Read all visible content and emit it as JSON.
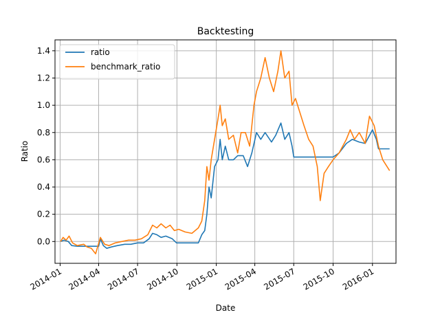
{
  "chart_data": {
    "type": "line",
    "title": "Backtesting",
    "xlabel": "Date",
    "ylabel": "Ratio",
    "x_ticks": [
      "2014-01",
      "2014-04",
      "2014-07",
      "2014-10",
      "2015-01",
      "2015-04",
      "2015-07",
      "2015-10",
      "2016-01"
    ],
    "y_ticks": [
      "0.0",
      "0.2",
      "0.4",
      "0.6",
      "0.8",
      "1.0",
      "1.2",
      "1.4"
    ],
    "xlim": [
      "2013-12-20",
      "2016-02-25"
    ],
    "ylim": [
      -0.16,
      1.48
    ],
    "grid": true,
    "legend_position": "top-left",
    "series": [
      {
        "name": "ratio",
        "color": "#1f77b4",
        "points": [
          [
            "2014-01-02",
            0.0
          ],
          [
            "2014-01-10",
            0.01
          ],
          [
            "2014-01-20",
            0.0
          ],
          [
            "2014-01-28",
            -0.03
          ],
          [
            "2014-02-10",
            -0.035
          ],
          [
            "2014-03-10",
            -0.035
          ],
          [
            "2014-04-01",
            -0.035
          ],
          [
            "2014-04-05",
            0.02
          ],
          [
            "2014-04-12",
            -0.03
          ],
          [
            "2014-04-20",
            -0.05
          ],
          [
            "2014-05-01",
            -0.04
          ],
          [
            "2014-05-15",
            -0.03
          ],
          [
            "2014-06-01",
            -0.02
          ],
          [
            "2014-06-15",
            -0.02
          ],
          [
            "2014-07-01",
            -0.01
          ],
          [
            "2014-07-15",
            -0.01
          ],
          [
            "2014-07-28",
            0.02
          ],
          [
            "2014-08-05",
            0.06
          ],
          [
            "2014-08-15",
            0.05
          ],
          [
            "2014-08-25",
            0.03
          ],
          [
            "2014-09-05",
            0.04
          ],
          [
            "2014-09-20",
            0.02
          ],
          [
            "2014-09-30",
            -0.01
          ],
          [
            "2014-10-20",
            -0.01
          ],
          [
            "2014-11-10",
            -0.01
          ],
          [
            "2014-11-20",
            -0.01
          ],
          [
            "2014-11-28",
            0.05
          ],
          [
            "2014-12-05",
            0.08
          ],
          [
            "2014-12-10",
            0.2
          ],
          [
            "2014-12-15",
            0.4
          ],
          [
            "2014-12-20",
            0.32
          ],
          [
            "2014-12-28",
            0.55
          ],
          [
            "2015-01-05",
            0.6
          ],
          [
            "2015-01-10",
            0.75
          ],
          [
            "2015-01-15",
            0.6
          ],
          [
            "2015-01-22",
            0.7
          ],
          [
            "2015-01-30",
            0.6
          ],
          [
            "2015-02-10",
            0.6
          ],
          [
            "2015-02-20",
            0.63
          ],
          [
            "2015-03-05",
            0.63
          ],
          [
            "2015-03-15",
            0.55
          ],
          [
            "2015-03-25",
            0.65
          ],
          [
            "2015-04-05",
            0.8
          ],
          [
            "2015-04-15",
            0.75
          ],
          [
            "2015-04-25",
            0.8
          ],
          [
            "2015-05-10",
            0.73
          ],
          [
            "2015-05-20",
            0.78
          ],
          [
            "2015-06-01",
            0.87
          ],
          [
            "2015-06-10",
            0.75
          ],
          [
            "2015-06-20",
            0.8
          ],
          [
            "2015-06-27",
            0.7
          ],
          [
            "2015-07-01",
            0.62
          ],
          [
            "2015-08-01",
            0.62
          ],
          [
            "2015-09-01",
            0.62
          ],
          [
            "2015-09-10",
            0.62
          ],
          [
            "2015-10-01",
            0.62
          ],
          [
            "2015-10-15",
            0.65
          ],
          [
            "2015-11-01",
            0.72
          ],
          [
            "2015-11-15",
            0.75
          ],
          [
            "2015-12-01",
            0.73
          ],
          [
            "2015-12-15",
            0.72
          ],
          [
            "2016-01-01",
            0.82
          ],
          [
            "2016-01-10",
            0.75
          ],
          [
            "2016-01-15",
            0.68
          ],
          [
            "2016-02-10",
            0.68
          ]
        ]
      },
      {
        "name": "benchmark_ratio",
        "color": "#ff7f0e",
        "points": [
          [
            "2014-01-02",
            0.0
          ],
          [
            "2014-01-08",
            0.03
          ],
          [
            "2014-01-15",
            0.01
          ],
          [
            "2014-01-22",
            0.04
          ],
          [
            "2014-01-30",
            -0.01
          ],
          [
            "2014-02-10",
            -0.03
          ],
          [
            "2014-02-25",
            -0.02
          ],
          [
            "2014-03-05",
            -0.04
          ],
          [
            "2014-03-15",
            -0.05
          ],
          [
            "2014-03-25",
            -0.09
          ],
          [
            "2014-04-05",
            0.03
          ],
          [
            "2014-04-15",
            -0.02
          ],
          [
            "2014-04-25",
            -0.03
          ],
          [
            "2014-05-10",
            -0.01
          ],
          [
            "2014-05-25",
            0.0
          ],
          [
            "2014-06-10",
            0.01
          ],
          [
            "2014-06-25",
            0.01
          ],
          [
            "2014-07-10",
            0.02
          ],
          [
            "2014-07-25",
            0.05
          ],
          [
            "2014-08-05",
            0.12
          ],
          [
            "2014-08-15",
            0.1
          ],
          [
            "2014-08-25",
            0.13
          ],
          [
            "2014-09-05",
            0.1
          ],
          [
            "2014-09-15",
            0.12
          ],
          [
            "2014-09-25",
            0.08
          ],
          [
            "2014-10-05",
            0.09
          ],
          [
            "2014-10-20",
            0.07
          ],
          [
            "2014-11-05",
            0.06
          ],
          [
            "2014-11-20",
            0.1
          ],
          [
            "2014-11-28",
            0.15
          ],
          [
            "2014-12-05",
            0.3
          ],
          [
            "2014-12-10",
            0.55
          ],
          [
            "2014-12-15",
            0.45
          ],
          [
            "2014-12-20",
            0.6
          ],
          [
            "2014-12-28",
            0.75
          ],
          [
            "2015-01-05",
            0.9
          ],
          [
            "2015-01-10",
            1.0
          ],
          [
            "2015-01-15",
            0.85
          ],
          [
            "2015-01-22",
            0.9
          ],
          [
            "2015-01-30",
            0.75
          ],
          [
            "2015-02-10",
            0.78
          ],
          [
            "2015-02-20",
            0.65
          ],
          [
            "2015-02-28",
            0.8
          ],
          [
            "2015-03-10",
            0.8
          ],
          [
            "2015-03-20",
            0.7
          ],
          [
            "2015-03-30",
            1.0
          ],
          [
            "2015-04-05",
            1.1
          ],
          [
            "2015-04-15",
            1.2
          ],
          [
            "2015-04-25",
            1.35
          ],
          [
            "2015-05-05",
            1.2
          ],
          [
            "2015-05-15",
            1.1
          ],
          [
            "2015-05-25",
            1.25
          ],
          [
            "2015-06-01",
            1.4
          ],
          [
            "2015-06-10",
            1.2
          ],
          [
            "2015-06-20",
            1.25
          ],
          [
            "2015-06-27",
            1.0
          ],
          [
            "2015-07-05",
            1.05
          ],
          [
            "2015-07-15",
            0.95
          ],
          [
            "2015-07-25",
            0.85
          ],
          [
            "2015-08-05",
            0.75
          ],
          [
            "2015-08-15",
            0.7
          ],
          [
            "2015-08-25",
            0.55
          ],
          [
            "2015-09-01",
            0.3
          ],
          [
            "2015-09-10",
            0.5
          ],
          [
            "2015-09-20",
            0.55
          ],
          [
            "2015-10-01",
            0.6
          ],
          [
            "2015-10-15",
            0.65
          ],
          [
            "2015-11-01",
            0.75
          ],
          [
            "2015-11-10",
            0.82
          ],
          [
            "2015-11-20",
            0.75
          ],
          [
            "2015-12-01",
            0.8
          ],
          [
            "2015-12-15",
            0.72
          ],
          [
            "2015-12-25",
            0.92
          ],
          [
            "2016-01-05",
            0.85
          ],
          [
            "2016-01-15",
            0.7
          ],
          [
            "2016-01-25",
            0.6
          ],
          [
            "2016-02-10",
            0.52
          ]
        ]
      }
    ]
  }
}
